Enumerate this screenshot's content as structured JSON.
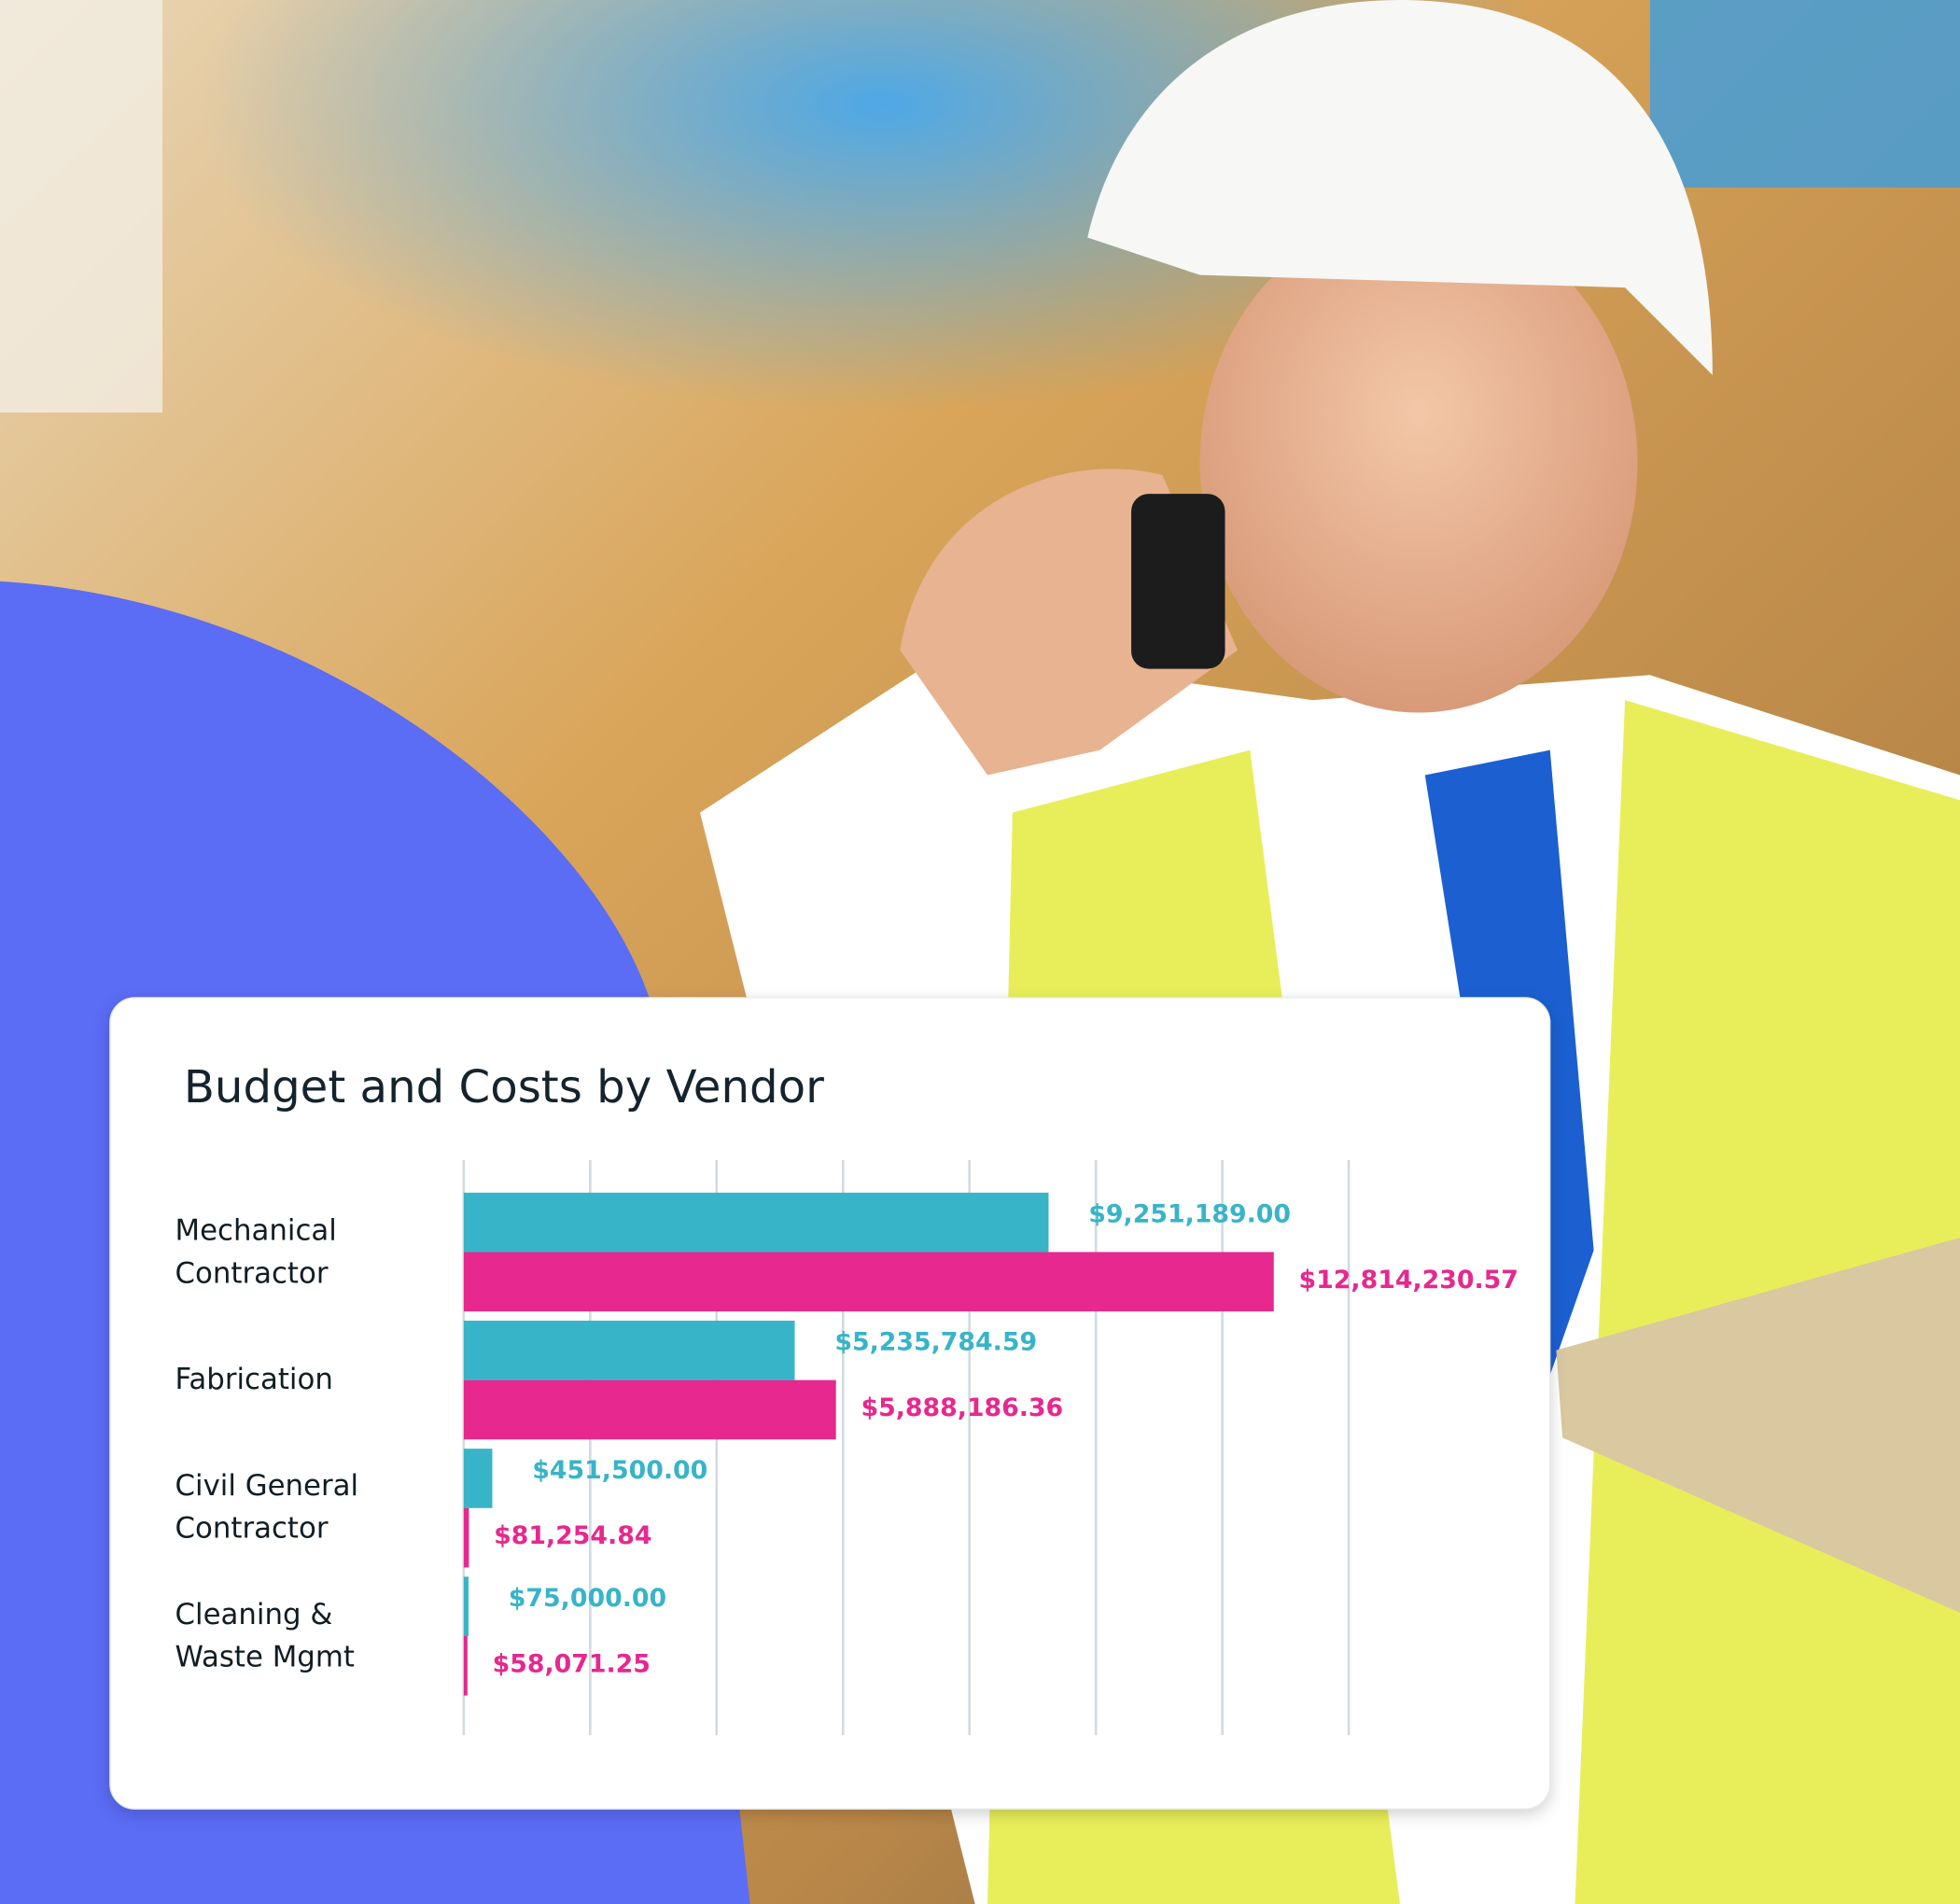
{
  "chart_data": {
    "type": "bar",
    "title": "Budget and Costs by Vendor",
    "categories": [
      "Mechanical Contractor",
      "Fabrication",
      "Civil General Contractor",
      "Cleaning & Waste Mgmt"
    ],
    "series": [
      {
        "color": "#38b4c9",
        "values": [
          9251189.0,
          5235784.59,
          451500.0,
          75000.0
        ],
        "value_labels": [
          "$9,251,189.00",
          "$5,235,784.59",
          "$451,500.00",
          "$75,000.00"
        ]
      },
      {
        "color": "#e6288f",
        "values": [
          12814230.57,
          5888186.36,
          81254.84,
          58071.25
        ],
        "value_labels": [
          "$12,814,230.57",
          "$5,888,186.36",
          "$81,254.84",
          "$58,071.25"
        ]
      }
    ],
    "xlim": [
      0,
      14000000
    ],
    "xticks": [
      0,
      2000000,
      4000000,
      6000000,
      8000000,
      10000000,
      12000000,
      14000000
    ],
    "grid": true
  }
}
